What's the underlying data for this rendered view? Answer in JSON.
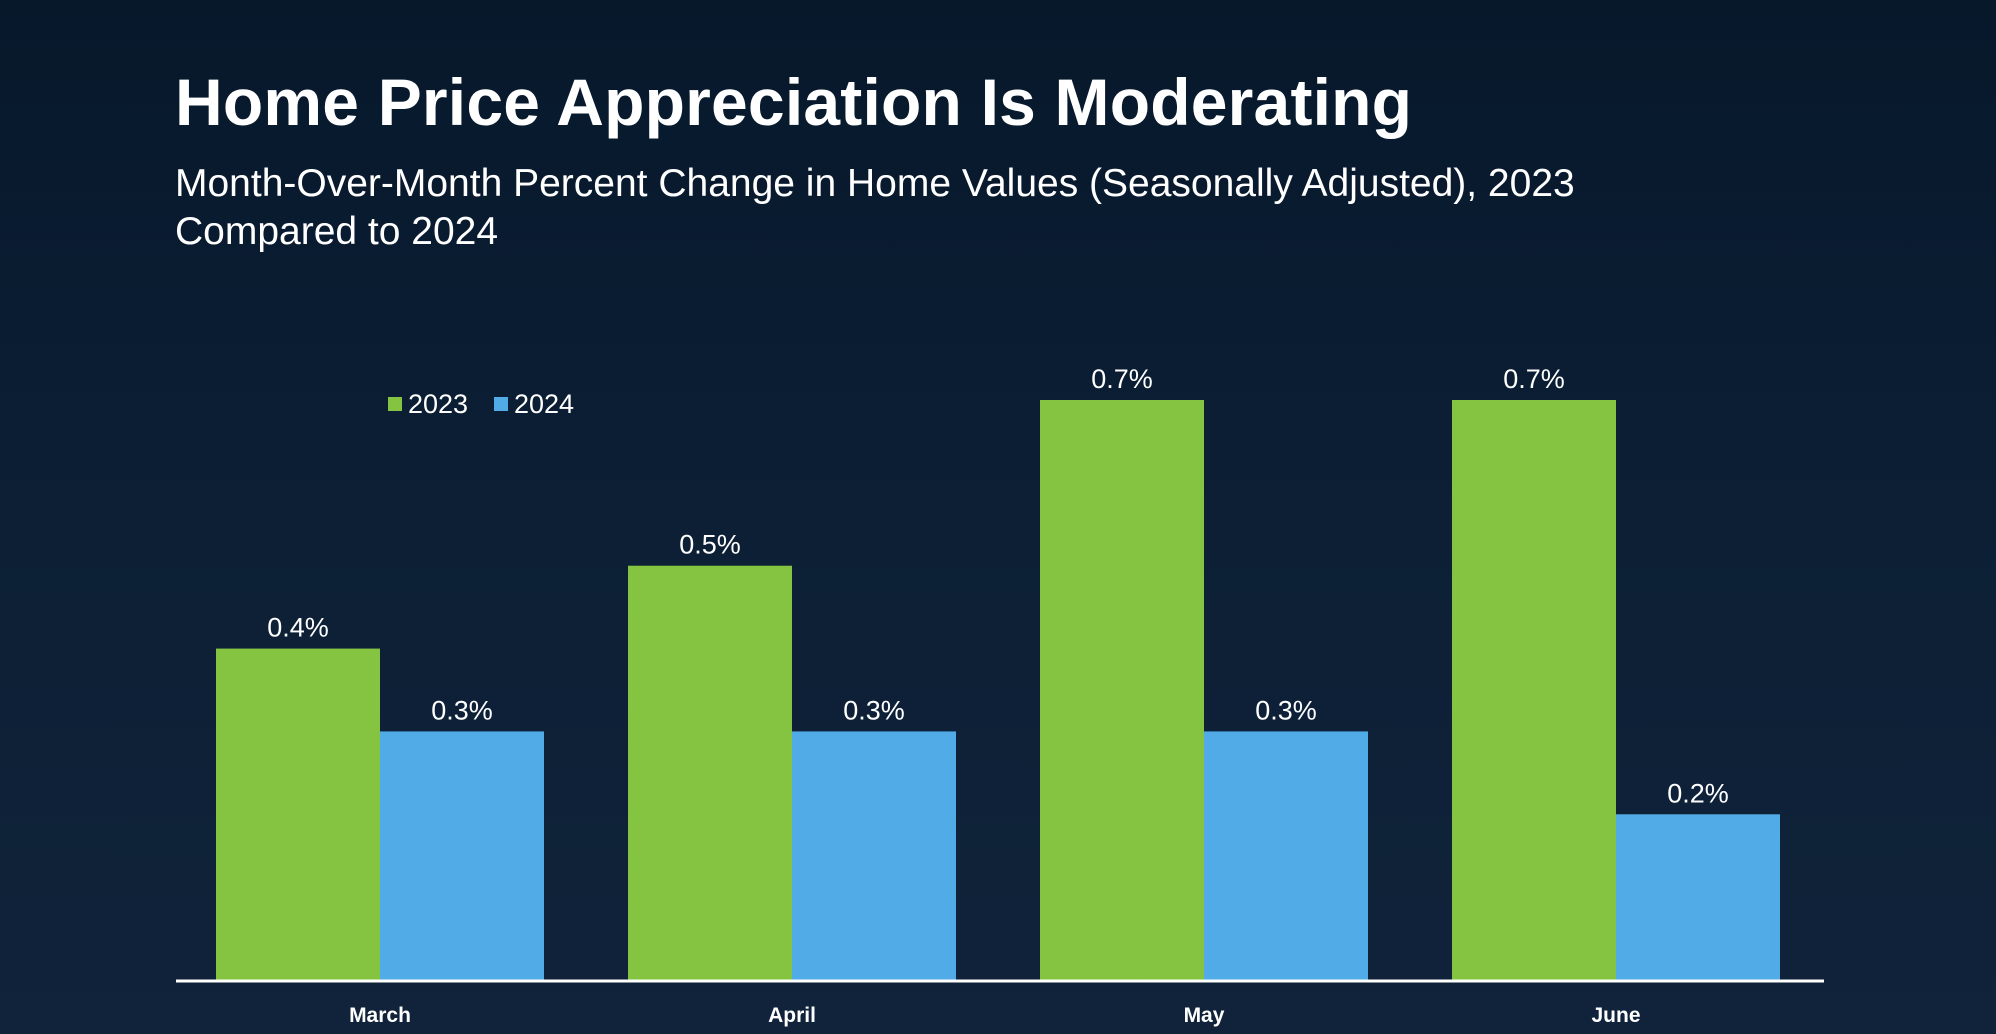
{
  "chart_data": {
    "type": "bar",
    "title": "Home Price Appreciation Is Moderating",
    "subtitle": "Month-Over-Month Percent Change in Home Values (Seasonally Adjusted), 2023 Compared to 2024",
    "categories": [
      "March",
      "April",
      "May",
      "June"
    ],
    "series": [
      {
        "name": "2023",
        "color": "#84c441",
        "values": [
          0.4,
          0.5,
          0.7,
          0.7
        ],
        "labels": [
          "0.4%",
          "0.5%",
          "0.7%",
          "0.7%"
        ]
      },
      {
        "name": "2024",
        "color": "#50abe7",
        "values": [
          0.3,
          0.3,
          0.3,
          0.2
        ],
        "labels": [
          "0.3%",
          "0.3%",
          "0.3%",
          "0.2%"
        ]
      }
    ],
    "xlabel": "",
    "ylabel": "",
    "ylim": [
      0,
      0.7
    ],
    "grid": false,
    "legend": "top-left"
  }
}
